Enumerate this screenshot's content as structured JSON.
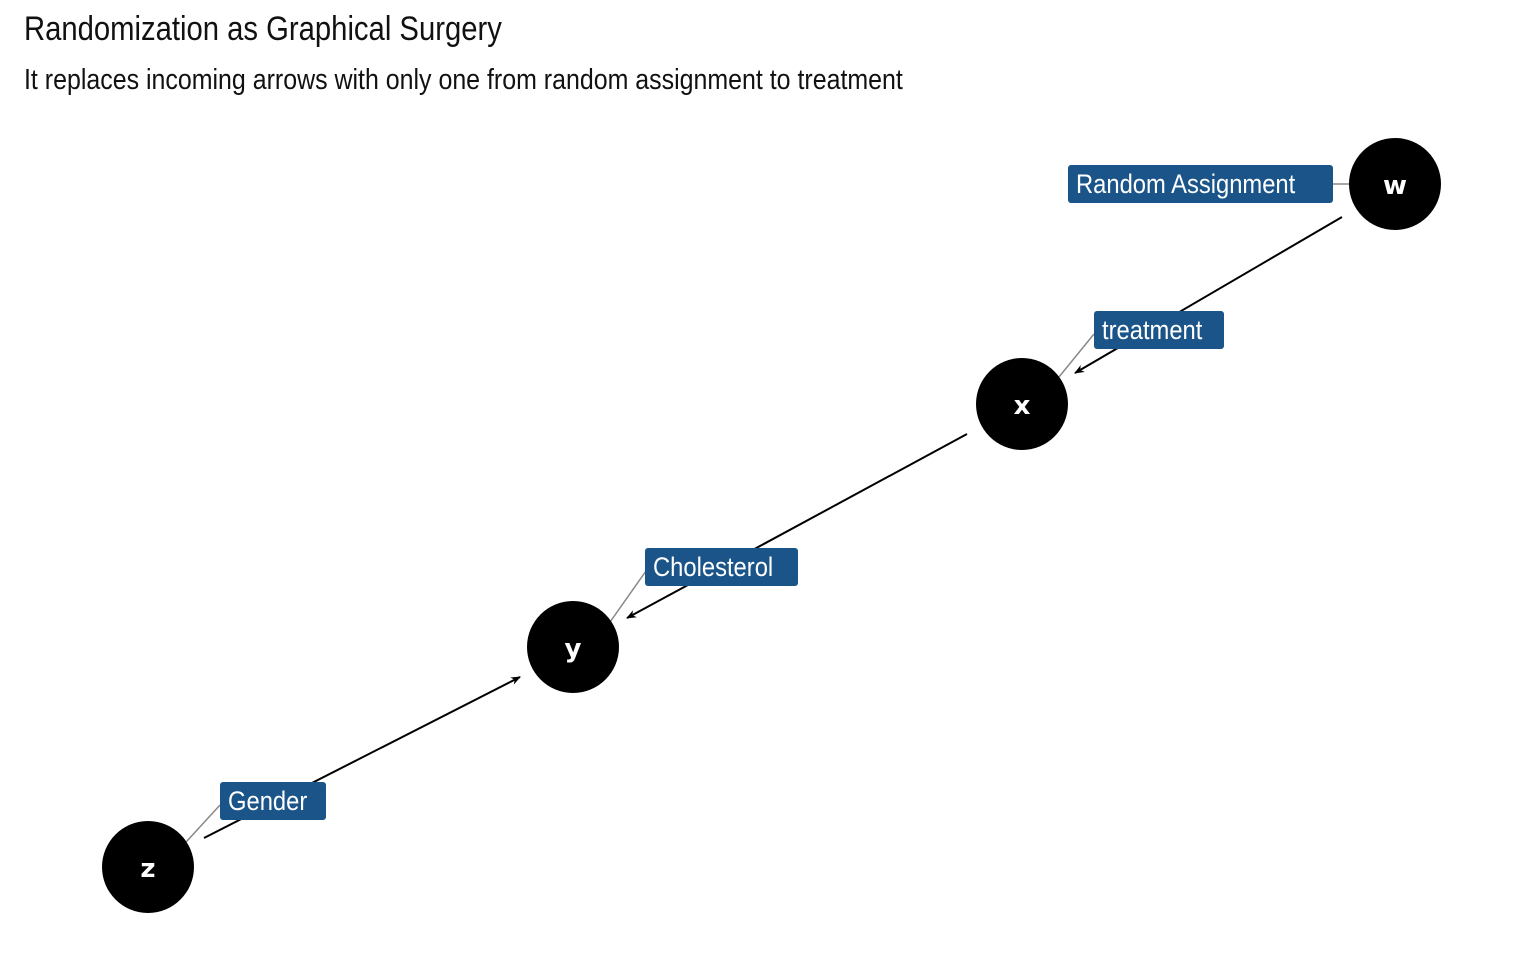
{
  "header": {
    "title": "Randomization as Graphical Surgery",
    "subtitle": "It replaces incoming arrows with only one from random assignment to treatment"
  },
  "colors": {
    "node_fill": "#000000",
    "node_text": "#ffffff",
    "label_fill": "#1a5488",
    "label_text": "#ffffff",
    "edge": "#000000",
    "leader": "#888888"
  },
  "nodes": [
    {
      "id": "w",
      "letter": "w",
      "label": "Random Assignment"
    },
    {
      "id": "x",
      "letter": "x",
      "label": "treatment"
    },
    {
      "id": "y",
      "letter": "y",
      "label": "Cholesterol"
    },
    {
      "id": "z",
      "letter": "z",
      "label": "Gender"
    }
  ],
  "edges": [
    {
      "from": "w",
      "to": "x"
    },
    {
      "from": "x",
      "to": "y"
    },
    {
      "from": "z",
      "to": "y"
    }
  ]
}
